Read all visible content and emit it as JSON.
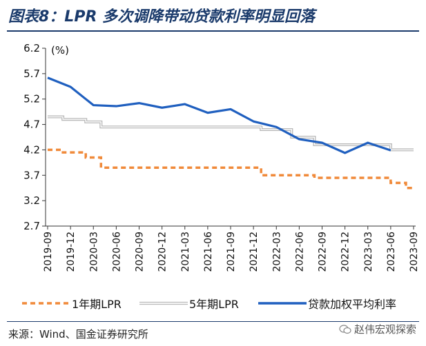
{
  "title": "图表8：LPR 多次调降带动贷款利率明显回落",
  "source": "来源：Wind、国金证券研究所",
  "watermark": "赵伟宏观探索",
  "colors": {
    "lpr1": "#f08a3a",
    "lpr5": "#b8b8b8",
    "loan": "#1f5fbf",
    "title": "#1a3a6b"
  },
  "chart_data": {
    "type": "line",
    "unit_label": "(%)",
    "ylim": [
      2.7,
      6.2
    ],
    "yticks": [
      "6.2",
      "5.7",
      "5.2",
      "4.7",
      "4.2",
      "3.7",
      "3.2",
      "2.7"
    ],
    "ytick_values": [
      6.2,
      5.7,
      5.2,
      4.7,
      4.2,
      3.7,
      3.2,
      2.7
    ],
    "xticks": [
      "2019-09",
      "2019-12",
      "2020-03",
      "2020-06",
      "2020-09",
      "2020-12",
      "2021-03",
      "2021-06",
      "2021-09",
      "2021-12",
      "2022-03",
      "2022-06",
      "2022-09",
      "2022-12",
      "2023-03",
      "2023-06",
      "2023-09"
    ],
    "x_months": [
      "2019-09",
      "2019-10",
      "2019-11",
      "2019-12",
      "2020-01",
      "2020-02",
      "2020-03",
      "2020-04",
      "2020-05",
      "2020-06",
      "2020-07",
      "2020-08",
      "2020-09",
      "2020-10",
      "2020-11",
      "2020-12",
      "2021-01",
      "2021-02",
      "2021-03",
      "2021-04",
      "2021-05",
      "2021-06",
      "2021-07",
      "2021-08",
      "2021-09",
      "2021-10",
      "2021-11",
      "2021-12",
      "2022-01",
      "2022-02",
      "2022-03",
      "2022-04",
      "2022-05",
      "2022-06",
      "2022-07",
      "2022-08",
      "2022-09",
      "2022-10",
      "2022-11",
      "2022-12",
      "2023-01",
      "2023-02",
      "2023-03",
      "2023-04",
      "2023-05",
      "2023-06",
      "2023-07",
      "2023-08",
      "2023-09"
    ],
    "series": [
      {
        "name": "1年期LPR",
        "style": "dashed",
        "values": [
          4.2,
          4.2,
          4.15,
          4.15,
          4.15,
          4.05,
          4.05,
          3.85,
          3.85,
          3.85,
          3.85,
          3.85,
          3.85,
          3.85,
          3.85,
          3.85,
          3.85,
          3.85,
          3.85,
          3.85,
          3.85,
          3.85,
          3.85,
          3.85,
          3.85,
          3.85,
          3.85,
          3.85,
          3.7,
          3.7,
          3.7,
          3.7,
          3.7,
          3.7,
          3.7,
          3.65,
          3.65,
          3.65,
          3.65,
          3.65,
          3.65,
          3.65,
          3.65,
          3.65,
          3.65,
          3.55,
          3.55,
          3.45,
          3.45
        ]
      },
      {
        "name": "5年期LPR",
        "style": "double",
        "values": [
          4.85,
          4.85,
          4.8,
          4.8,
          4.8,
          4.75,
          4.75,
          4.65,
          4.65,
          4.65,
          4.65,
          4.65,
          4.65,
          4.65,
          4.65,
          4.65,
          4.65,
          4.65,
          4.65,
          4.65,
          4.65,
          4.65,
          4.65,
          4.65,
          4.65,
          4.65,
          4.65,
          4.65,
          4.6,
          4.6,
          4.6,
          4.6,
          4.45,
          4.45,
          4.45,
          4.3,
          4.3,
          4.3,
          4.3,
          4.3,
          4.3,
          4.3,
          4.3,
          4.3,
          4.3,
          4.2,
          4.2,
          4.2,
          4.2
        ]
      },
      {
        "name": "贷款加权平均利率",
        "style": "solid",
        "x_index": [
          0,
          3,
          6,
          9,
          12,
          15,
          18,
          21,
          24,
          27,
          30,
          33,
          36,
          39,
          42,
          45
        ],
        "values": [
          5.62,
          5.44,
          5.08,
          5.06,
          5.12,
          5.03,
          5.1,
          4.93,
          5.0,
          4.76,
          4.65,
          4.41,
          4.34,
          4.14,
          4.34,
          4.19
        ]
      }
    ]
  }
}
